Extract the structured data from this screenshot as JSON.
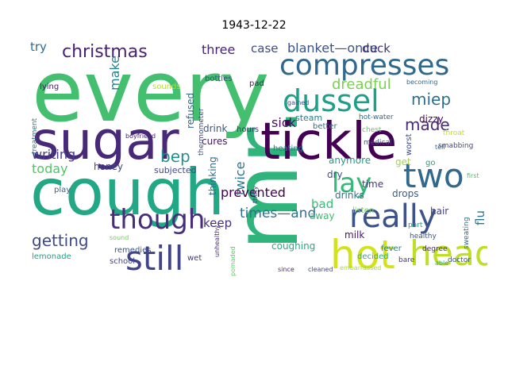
{
  "title": "1943-12-22",
  "words": [
    {
      "text": "every",
      "color": "#44bf70"
    },
    {
      "text": "mr.",
      "color": "#2fb47c"
    },
    {
      "text": "tickle",
      "color": "#440154"
    },
    {
      "text": "sugar",
      "color": "#482878"
    },
    {
      "text": "cough",
      "color": "#22a884"
    },
    {
      "text": "compresses",
      "color": "#31688e"
    },
    {
      "text": "dussel",
      "color": "#1f9e89"
    },
    {
      "text": "head",
      "color": "#bddf26"
    },
    {
      "text": "hot",
      "color": "#d2e21b"
    },
    {
      "text": "really",
      "color": "#3b528b"
    },
    {
      "text": "two",
      "color": "#31688e"
    },
    {
      "text": "still",
      "color": "#414487"
    },
    {
      "text": "though",
      "color": "#472d7b"
    },
    {
      "text": "lay",
      "color": "#35b779"
    },
    {
      "text": "getting",
      "color": "#3e4a89"
    },
    {
      "text": "christmas",
      "color": "#482173"
    },
    {
      "text": "made",
      "color": "#482878"
    },
    {
      "text": "miep",
      "color": "#2d708e"
    },
    {
      "text": "blanket—once",
      "color": "#3b528b"
    },
    {
      "text": "dreadful",
      "color": "#7ad151"
    },
    {
      "text": "bep",
      "color": "#21918c"
    },
    {
      "text": "writing",
      "color": "#433e85"
    },
    {
      "text": "prevented",
      "color": "#440154"
    },
    {
      "text": "times—and",
      "color": "#2c728e"
    },
    {
      "text": "today",
      "color": "#52c569"
    },
    {
      "text": "make",
      "color": "#26828e"
    },
    {
      "text": "try",
      "color": "#31688e"
    },
    {
      "text": "three",
      "color": "#482475"
    },
    {
      "text": "case",
      "color": "#3e4989"
    },
    {
      "text": "duck",
      "color": "#46327e"
    },
    {
      "text": "sick",
      "color": "#471063"
    },
    {
      "text": "twice",
      "color": "#2a788e"
    },
    {
      "text": "keep",
      "color": "#472f7d"
    },
    {
      "text": "bad",
      "color": "#3bbb75"
    },
    {
      "text": "flu",
      "color": "#2a788e"
    },
    {
      "text": "coughing",
      "color": "#25ab82"
    },
    {
      "text": "refused",
      "color": "#306a8e"
    },
    {
      "text": "thinking",
      "color": "#2e6e8e"
    },
    {
      "text": "honey",
      "color": "#404688"
    },
    {
      "text": "subjected",
      "color": "#3f4788"
    },
    {
      "text": "drink",
      "color": "#38588c"
    },
    {
      "text": "cures",
      "color": "#481769"
    },
    {
      "text": "steam",
      "color": "#287c8e"
    },
    {
      "text": "dizzy",
      "color": "#46085c"
    },
    {
      "text": "anymore",
      "color": "#1e9b8a"
    },
    {
      "text": "get",
      "color": "#9fda3a"
    },
    {
      "text": "dry",
      "color": "#3c4f8a"
    },
    {
      "text": "time",
      "color": "#453781"
    },
    {
      "text": "drinks",
      "color": "#2c738e"
    },
    {
      "text": "away",
      "color": "#3dbc74"
    },
    {
      "text": "milk",
      "color": "#481467"
    },
    {
      "text": "drops",
      "color": "#365c8d"
    },
    {
      "text": "hair",
      "color": "#404387"
    },
    {
      "text": "fever",
      "color": "#25848e"
    },
    {
      "text": "decided",
      "color": "#29af7f"
    },
    {
      "text": "lemonade",
      "color": "#1fa188"
    },
    {
      "text": "remedies",
      "color": "#3a538b"
    },
    {
      "text": "wet",
      "color": "#453882"
    },
    {
      "text": "play",
      "color": "#33638d"
    },
    {
      "text": "treatment",
      "color": "#2e6f8e"
    },
    {
      "text": "lying",
      "color": "#48186a"
    },
    {
      "text": "sounds",
      "color": "#b5de2b"
    },
    {
      "text": "bottles",
      "color": "#3f4889"
    },
    {
      "text": "heating",
      "color": "#2a768e"
    },
    {
      "text": "hours",
      "color": "#462f7e"
    },
    {
      "text": "better",
      "color": "#2d718e"
    },
    {
      "text": "listen",
      "color": "#6ece58"
    },
    {
      "text": "sweating",
      "color": "#2c718e"
    },
    {
      "text": "doctor",
      "color": "#3b518b"
    },
    {
      "text": "bare",
      "color": "#453781"
    },
    {
      "text": "school",
      "color": "#3f4788"
    },
    {
      "text": "pad",
      "color": "#481a6c"
    },
    {
      "text": "since",
      "color": "#472c7a"
    },
    {
      "text": "cleaned",
      "color": "#3e4a89"
    },
    {
      "text": "part",
      "color": "#1f958b"
    },
    {
      "text": "healthy",
      "color": "#39558c"
    },
    {
      "text": "degree",
      "color": "#482475"
    },
    {
      "text": "worst",
      "color": "#3e4989"
    },
    {
      "text": "medical",
      "color": "#3a548c"
    },
    {
      "text": "smabbing",
      "color": "#404588"
    },
    {
      "text": "throat",
      "color": "#c0df25"
    },
    {
      "text": "chest",
      "color": "#5ec962"
    },
    {
      "text": "hot-water",
      "color": "#2f6b8e"
    },
    {
      "text": "thermometer",
      "color": "#3e4989"
    },
    {
      "text": "boyfriend",
      "color": "#482173"
    },
    {
      "text": "sound",
      "color": "#6ece58"
    },
    {
      "text": "pomaded",
      "color": "#5ec962"
    },
    {
      "text": "go",
      "color": "#20a386"
    },
    {
      "text": "embarrassed",
      "color": "#a8db34"
    },
    {
      "text": "becoming",
      "color": "#31688e"
    },
    {
      "text": "unhealthy",
      "color": "#472a7a"
    },
    {
      "text": "thirty",
      "color": "#443983"
    },
    {
      "text": "gained",
      "color": "#3e4989"
    },
    {
      "text": "tell",
      "color": "#2f6c8e"
    },
    {
      "text": "able",
      "color": "#26ad81"
    },
    {
      "text": "first",
      "color": "#48c16e"
    }
  ]
}
